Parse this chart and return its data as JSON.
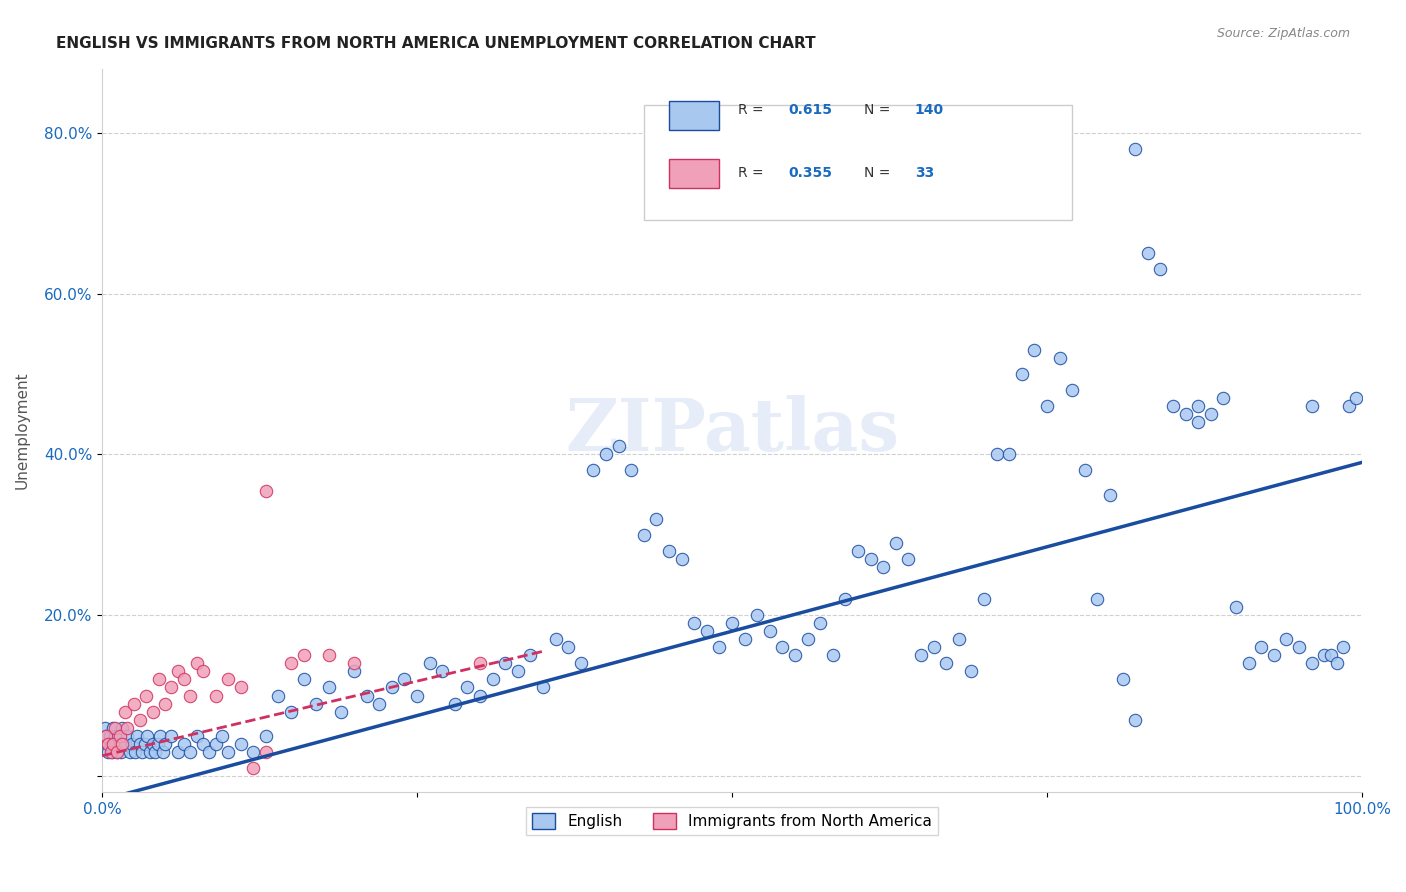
{
  "title": "ENGLISH VS IMMIGRANTS FROM NORTH AMERICA UNEMPLOYMENT CORRELATION CHART",
  "source": "Source: ZipAtlas.com",
  "xlabel": "",
  "ylabel": "Unemployment",
  "xlim": [
    0.0,
    1.0
  ],
  "ylim": [
    -0.02,
    0.88
  ],
  "xticks": [
    0.0,
    0.25,
    0.5,
    0.75,
    1.0
  ],
  "xtick_labels": [
    "0.0%",
    "",
    "",
    "",
    "100.0%"
  ],
  "yticks": [
    0.0,
    0.2,
    0.4,
    0.6,
    0.8
  ],
  "ytick_labels": [
    "",
    "20.0%",
    "40.0%",
    "60.0%",
    "80.0%"
  ],
  "legend_r1": "R = ",
  "legend_r1_val": "0.615",
  "legend_n1": "N = ",
  "legend_n1_val": "140",
  "legend_r2_val": "0.355",
  "legend_n2_val": "33",
  "english_color": "#a8c8f0",
  "english_line_color": "#1a4ca0",
  "immigrant_color": "#f0a0b8",
  "immigrant_line_color": "#d03060",
  "blue_scatter": [
    [
      0.002,
      0.06
    ],
    [
      0.003,
      0.05
    ],
    [
      0.004,
      0.04
    ],
    [
      0.005,
      0.03
    ],
    [
      0.006,
      0.05
    ],
    [
      0.007,
      0.04
    ],
    [
      0.008,
      0.03
    ],
    [
      0.009,
      0.06
    ],
    [
      0.01,
      0.05
    ],
    [
      0.011,
      0.04
    ],
    [
      0.012,
      0.03
    ],
    [
      0.013,
      0.05
    ],
    [
      0.014,
      0.04
    ],
    [
      0.015,
      0.03
    ],
    [
      0.016,
      0.06
    ],
    [
      0.018,
      0.04
    ],
    [
      0.02,
      0.05
    ],
    [
      0.022,
      0.03
    ],
    [
      0.024,
      0.04
    ],
    [
      0.026,
      0.03
    ],
    [
      0.028,
      0.05
    ],
    [
      0.03,
      0.04
    ],
    [
      0.032,
      0.03
    ],
    [
      0.034,
      0.04
    ],
    [
      0.036,
      0.05
    ],
    [
      0.038,
      0.03
    ],
    [
      0.04,
      0.04
    ],
    [
      0.042,
      0.03
    ],
    [
      0.044,
      0.04
    ],
    [
      0.046,
      0.05
    ],
    [
      0.048,
      0.03
    ],
    [
      0.05,
      0.04
    ],
    [
      0.055,
      0.05
    ],
    [
      0.06,
      0.03
    ],
    [
      0.065,
      0.04
    ],
    [
      0.07,
      0.03
    ],
    [
      0.075,
      0.05
    ],
    [
      0.08,
      0.04
    ],
    [
      0.085,
      0.03
    ],
    [
      0.09,
      0.04
    ],
    [
      0.095,
      0.05
    ],
    [
      0.1,
      0.03
    ],
    [
      0.11,
      0.04
    ],
    [
      0.12,
      0.03
    ],
    [
      0.13,
      0.05
    ],
    [
      0.14,
      0.1
    ],
    [
      0.15,
      0.08
    ],
    [
      0.16,
      0.12
    ],
    [
      0.17,
      0.09
    ],
    [
      0.18,
      0.11
    ],
    [
      0.19,
      0.08
    ],
    [
      0.2,
      0.13
    ],
    [
      0.21,
      0.1
    ],
    [
      0.22,
      0.09
    ],
    [
      0.23,
      0.11
    ],
    [
      0.24,
      0.12
    ],
    [
      0.25,
      0.1
    ],
    [
      0.26,
      0.14
    ],
    [
      0.27,
      0.13
    ],
    [
      0.28,
      0.09
    ],
    [
      0.29,
      0.11
    ],
    [
      0.3,
      0.1
    ],
    [
      0.31,
      0.12
    ],
    [
      0.32,
      0.14
    ],
    [
      0.33,
      0.13
    ],
    [
      0.34,
      0.15
    ],
    [
      0.35,
      0.11
    ],
    [
      0.36,
      0.17
    ],
    [
      0.37,
      0.16
    ],
    [
      0.38,
      0.14
    ],
    [
      0.39,
      0.38
    ],
    [
      0.4,
      0.4
    ],
    [
      0.41,
      0.41
    ],
    [
      0.42,
      0.38
    ],
    [
      0.43,
      0.3
    ],
    [
      0.44,
      0.32
    ],
    [
      0.45,
      0.28
    ],
    [
      0.46,
      0.27
    ],
    [
      0.47,
      0.19
    ],
    [
      0.48,
      0.18
    ],
    [
      0.49,
      0.16
    ],
    [
      0.5,
      0.19
    ],
    [
      0.51,
      0.17
    ],
    [
      0.52,
      0.2
    ],
    [
      0.53,
      0.18
    ],
    [
      0.54,
      0.16
    ],
    [
      0.55,
      0.15
    ],
    [
      0.56,
      0.17
    ],
    [
      0.57,
      0.19
    ],
    [
      0.58,
      0.15
    ],
    [
      0.59,
      0.22
    ],
    [
      0.6,
      0.28
    ],
    [
      0.61,
      0.27
    ],
    [
      0.62,
      0.26
    ],
    [
      0.63,
      0.29
    ],
    [
      0.64,
      0.27
    ],
    [
      0.65,
      0.15
    ],
    [
      0.66,
      0.16
    ],
    [
      0.67,
      0.14
    ],
    [
      0.68,
      0.17
    ],
    [
      0.69,
      0.13
    ],
    [
      0.7,
      0.22
    ],
    [
      0.71,
      0.4
    ],
    [
      0.72,
      0.4
    ],
    [
      0.73,
      0.5
    ],
    [
      0.74,
      0.53
    ],
    [
      0.75,
      0.46
    ],
    [
      0.76,
      0.52
    ],
    [
      0.77,
      0.48
    ],
    [
      0.78,
      0.38
    ],
    [
      0.79,
      0.22
    ],
    [
      0.8,
      0.35
    ],
    [
      0.81,
      0.12
    ],
    [
      0.82,
      0.07
    ],
    [
      0.83,
      0.65
    ],
    [
      0.84,
      0.63
    ],
    [
      0.85,
      0.46
    ],
    [
      0.86,
      0.45
    ],
    [
      0.87,
      0.46
    ],
    [
      0.88,
      0.45
    ],
    [
      0.89,
      0.47
    ],
    [
      0.9,
      0.21
    ],
    [
      0.91,
      0.14
    ],
    [
      0.92,
      0.16
    ],
    [
      0.93,
      0.15
    ],
    [
      0.94,
      0.17
    ],
    [
      0.95,
      0.16
    ],
    [
      0.96,
      0.14
    ],
    [
      0.97,
      0.15
    ],
    [
      0.975,
      0.15
    ],
    [
      0.98,
      0.14
    ],
    [
      0.985,
      0.16
    ],
    [
      0.87,
      0.44
    ],
    [
      0.96,
      0.46
    ],
    [
      0.82,
      0.78
    ],
    [
      0.99,
      0.46
    ],
    [
      0.995,
      0.47
    ]
  ],
  "pink_scatter": [
    [
      0.003,
      0.05
    ],
    [
      0.005,
      0.04
    ],
    [
      0.007,
      0.03
    ],
    [
      0.009,
      0.04
    ],
    [
      0.01,
      0.06
    ],
    [
      0.012,
      0.03
    ],
    [
      0.014,
      0.05
    ],
    [
      0.016,
      0.04
    ],
    [
      0.018,
      0.08
    ],
    [
      0.02,
      0.06
    ],
    [
      0.025,
      0.09
    ],
    [
      0.03,
      0.07
    ],
    [
      0.035,
      0.1
    ],
    [
      0.04,
      0.08
    ],
    [
      0.045,
      0.12
    ],
    [
      0.05,
      0.09
    ],
    [
      0.055,
      0.11
    ],
    [
      0.06,
      0.13
    ],
    [
      0.065,
      0.12
    ],
    [
      0.07,
      0.1
    ],
    [
      0.075,
      0.14
    ],
    [
      0.08,
      0.13
    ],
    [
      0.09,
      0.1
    ],
    [
      0.1,
      0.12
    ],
    [
      0.11,
      0.11
    ],
    [
      0.12,
      0.01
    ],
    [
      0.13,
      0.03
    ],
    [
      0.15,
      0.14
    ],
    [
      0.16,
      0.15
    ],
    [
      0.18,
      0.15
    ],
    [
      0.2,
      0.14
    ],
    [
      0.13,
      0.355
    ],
    [
      0.3,
      0.14
    ]
  ],
  "blue_trendline": [
    [
      0.0,
      -0.03
    ],
    [
      1.0,
      0.39
    ]
  ],
  "pink_trendline": [
    [
      0.0,
      0.025
    ],
    [
      0.35,
      0.155
    ]
  ],
  "watermark": "ZIPatlas",
  "grid_color": "#d0d0d0",
  "background_color": "#ffffff"
}
